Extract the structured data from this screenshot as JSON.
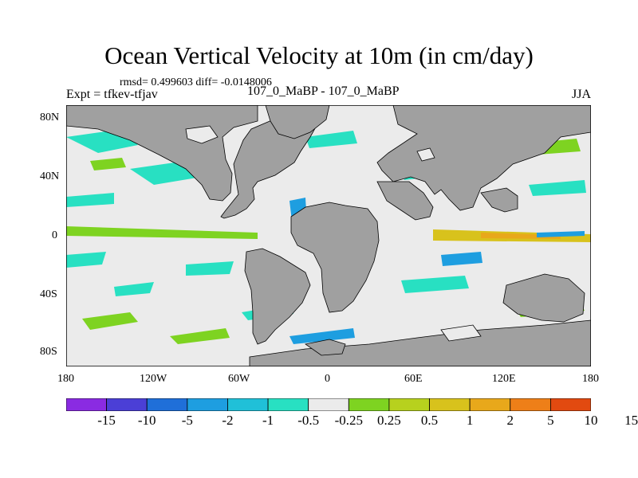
{
  "title": "Ocean Vertical Velocity at 10m (in cm/day)",
  "stats": "rmsd= 0.499603 diff= -0.0148006",
  "expt": "Expt = tfkev-tfjav",
  "case": "107_0_MaBP - 107_0_MaBP",
  "season": "JJA",
  "y_ticks": [
    "80N",
    "40N",
    "0",
    "40S",
    "80S"
  ],
  "x_ticks": [
    "180",
    "120W",
    "60W",
    "0",
    "60E",
    "120E",
    "180"
  ],
  "colorbar": {
    "colors": [
      "#8a2be2",
      "#4b3fd6",
      "#1f6fd9",
      "#1e9ee0",
      "#20c0d8",
      "#28e0c2",
      "#ebebeb",
      "#7ed321",
      "#b7d11e",
      "#d8c21c",
      "#e8a81b",
      "#ee7f18",
      "#e24a10"
    ],
    "labels": [
      "-15",
      "-10",
      "-5",
      "-2",
      "-1",
      "-0.5",
      "-0.25",
      "0.25",
      "0.5",
      "1",
      "2",
      "5",
      "10",
      "15"
    ]
  },
  "map_colors": {
    "land": "#a0a0a0",
    "ocean_neutral": "#ebebeb",
    "cyan": "#28e0c2",
    "blue": "#1e9ee0",
    "green": "#7ed321",
    "yellow": "#d8c21c",
    "orange": "#e8a81b"
  }
}
